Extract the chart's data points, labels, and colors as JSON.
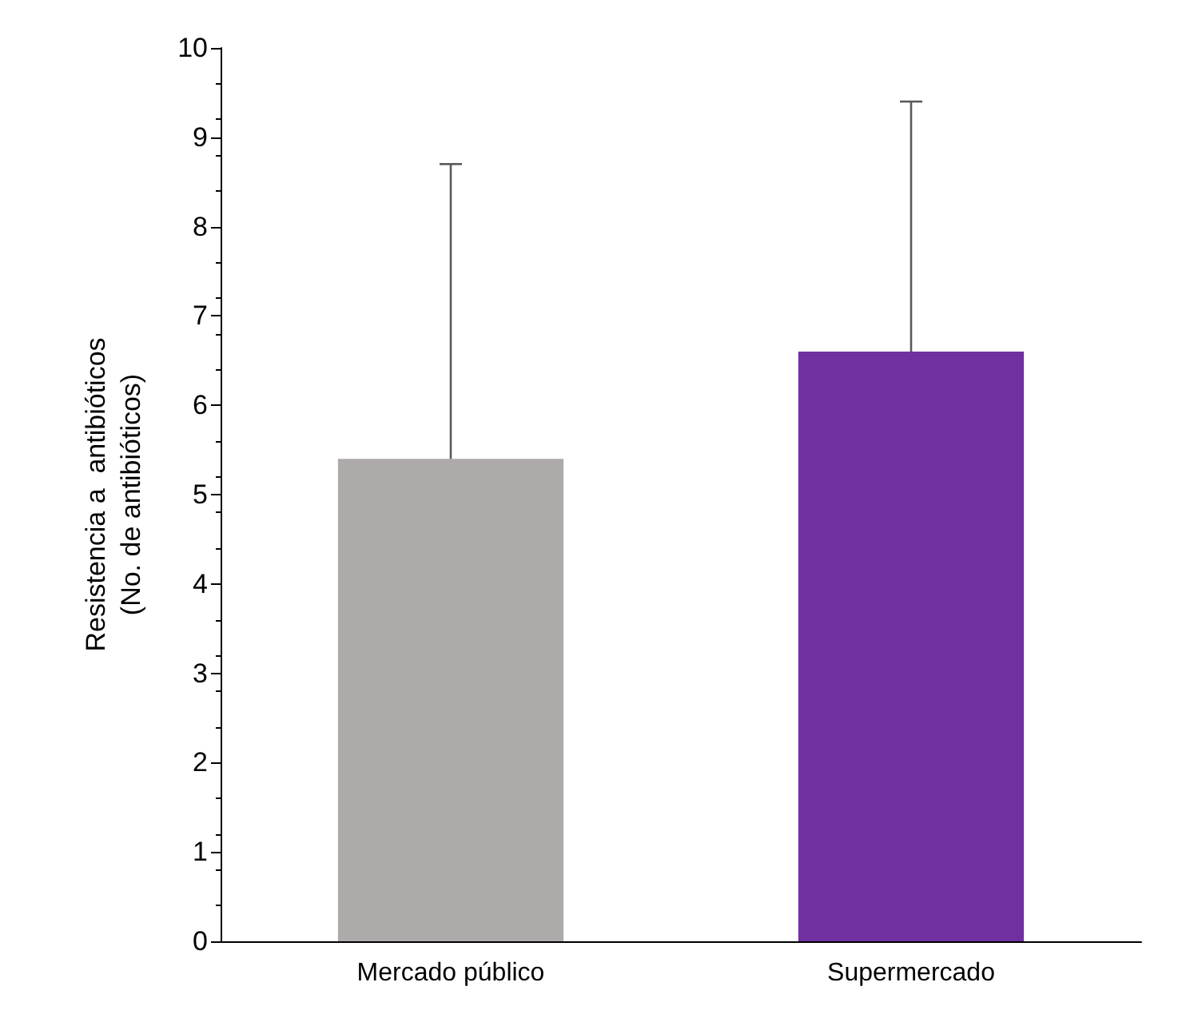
{
  "chart_data": {
    "type": "bar",
    "ylabel": "Resistencia a  antibióticos\n(No. de antibióticos)",
    "categories": [
      "Mercado público",
      "Supermercado"
    ],
    "values": [
      5.4,
      6.6
    ],
    "colors": [
      "#aeaaaa",
      "#7030a0"
    ],
    "errors": [
      [
        5.4,
        8.7
      ],
      [
        6.6,
        9.4
      ]
    ],
    "ylim": [
      0,
      10
    ],
    "yticks": [
      0,
      1,
      2,
      3,
      4,
      5,
      6,
      7,
      8,
      9,
      10
    ],
    "grid": false
  }
}
